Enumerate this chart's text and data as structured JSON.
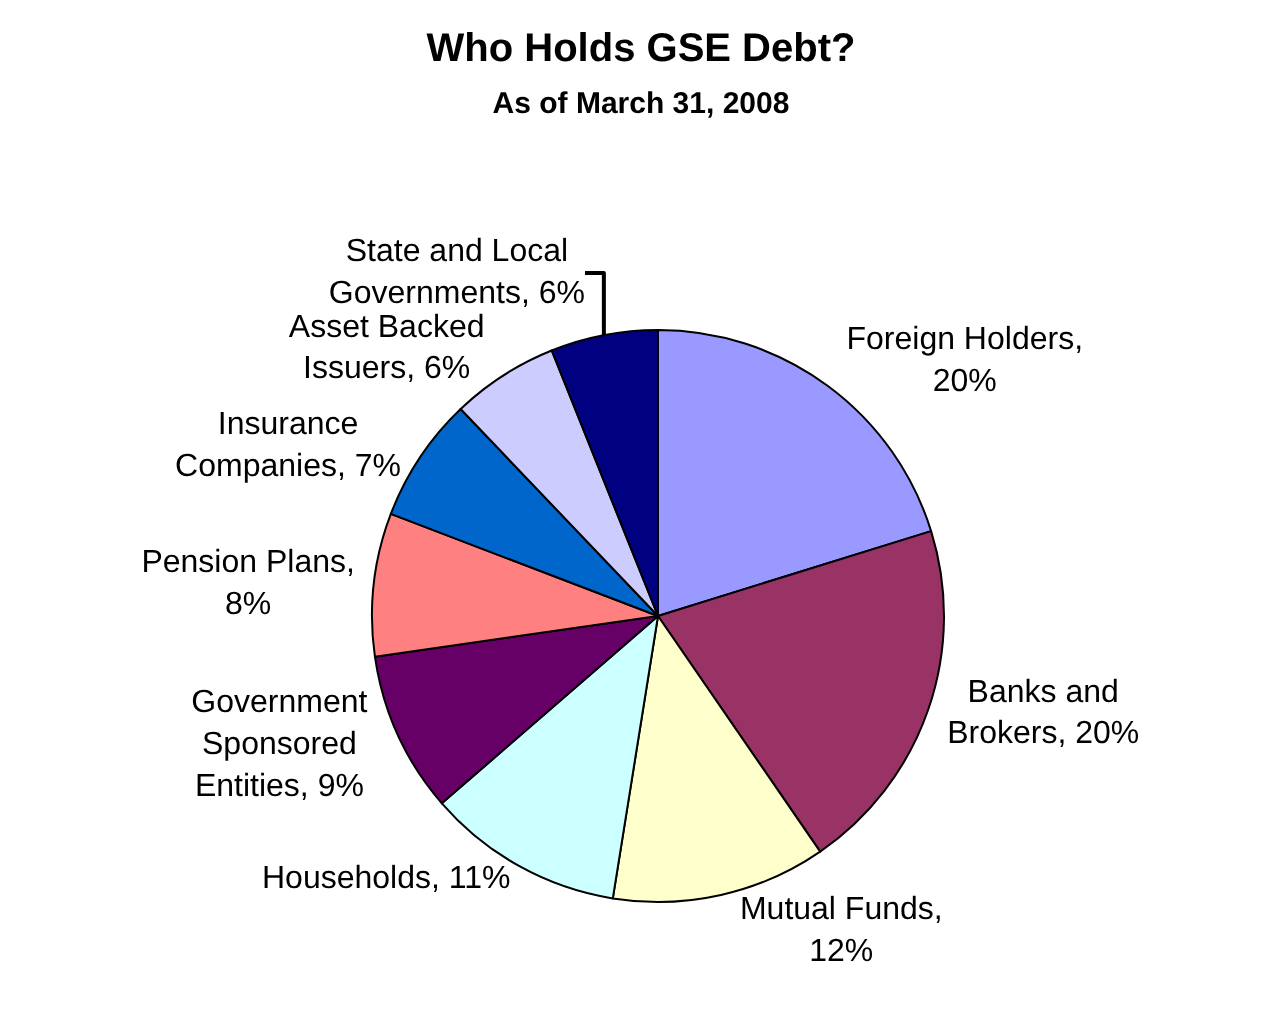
{
  "chart_data": {
    "type": "pie",
    "title": "Who Holds GSE Debt?",
    "subtitle": "As of March 31, 2008",
    "categories": [
      "Foreign Holders, 20%",
      "Banks and Brokers, 20%",
      "Mutual Funds, 12%",
      "Households, 11%",
      "Government Sponsored Entities, 9%",
      "Pension Plans, 8%",
      "Insurance Companies, 7%",
      "Asset Backed Issuers, 6%",
      "State and Local Governments, 6%"
    ],
    "values": [
      20,
      20,
      12,
      11,
      9,
      8,
      7,
      6,
      6
    ],
    "colors": [
      "#9999ff",
      "#993366",
      "#ffffcc",
      "#ccffff",
      "#660066",
      "#ff8080",
      "#0066cc",
      "#ccccff",
      "#000080"
    ],
    "legend": false
  }
}
